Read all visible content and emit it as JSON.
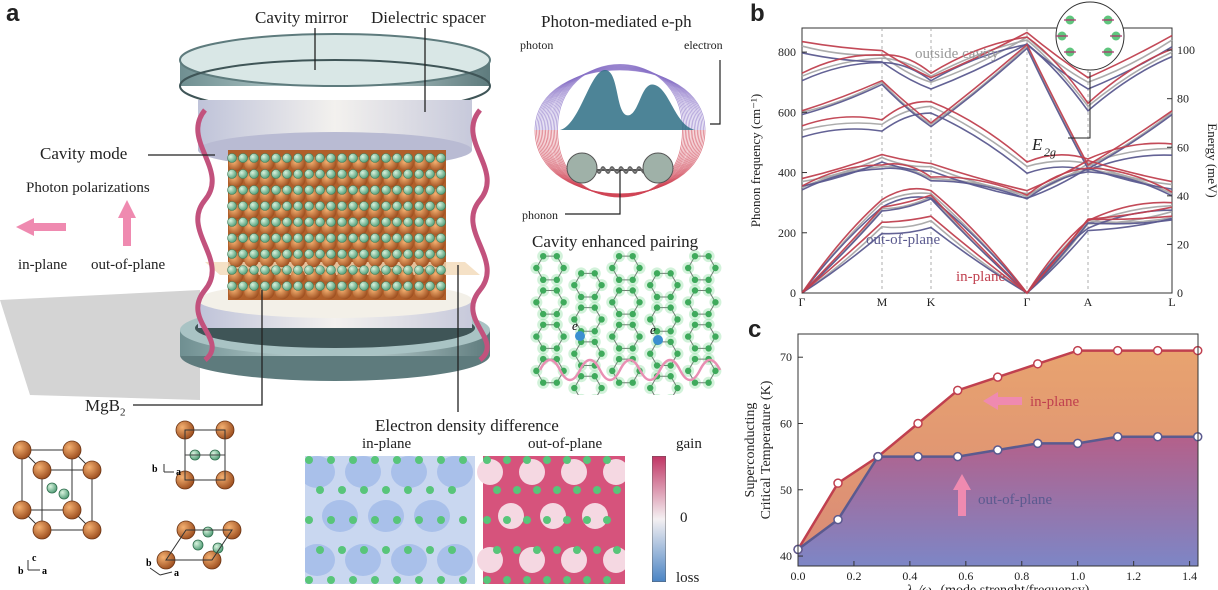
{
  "panels": {
    "a": "a",
    "b": "b",
    "c": "c"
  },
  "panel_a": {
    "cavity_mirror": "Cavity mirror",
    "dielectric_spacer": "Dielectric spacer",
    "cavity_mode": "Cavity mode",
    "photon_polarizations": "Photon polarizations",
    "in_plane": "in-plane",
    "out_of_plane": "out-of-plane",
    "material": "MgB",
    "material_sub": "2",
    "photon_mediated": "Photon-mediated e-ph",
    "photon": "photon",
    "electron": "electron",
    "phonon": "phonon",
    "cavity_enhanced": "Cavity enhanced pairing",
    "electron_symbol": "e",
    "edd_title": "Electron density difference",
    "edd_in_plane": "in-plane",
    "edd_out_of_plane": "out-of-plane",
    "colorbar": {
      "gain": "gain",
      "zero": "0",
      "loss": "loss"
    },
    "axes_labels": {
      "a": "a",
      "b": "b",
      "c": "c"
    }
  },
  "chart_data": [
    {
      "type": "line",
      "panel": "b",
      "ylabel": "Phonon frequency (cm⁻¹)",
      "y2label": "Energy (meV)",
      "x_ticks": [
        "Γ",
        "M",
        "K",
        "Γ",
        "A",
        "L"
      ],
      "ylim": [
        0,
        880
      ],
      "y_ticks": [
        0,
        200,
        400,
        600,
        800
      ],
      "y2_ticks": [
        0,
        20,
        40,
        60,
        80,
        100
      ],
      "y2lim": [
        0,
        109.1
      ],
      "annotations": [
        "outside cavity",
        "out-of-plane",
        "in-plane",
        "E",
        "2g"
      ],
      "series": [
        {
          "name": "outside cavity",
          "color": "#a8a8a8",
          "label_color": "#999999"
        },
        {
          "name": "out-of-plane",
          "color": "#5b5a8f",
          "label_color": "#5b5a8f"
        },
        {
          "name": "in-plane",
          "color": "#c0404f",
          "label_color": "#c0404f"
        }
      ]
    },
    {
      "type": "area",
      "panel": "c",
      "ylabel": "Superconducting",
      "ylabel2": "Critical Temperature (K)",
      "xlabel": "λα/ωα  (mode strenght/frequency)",
      "xlabel_main": "λ",
      "xlabel_sub1": "α",
      "xlabel_mid": "/ω",
      "xlabel_sub2": "α",
      "xlabel_rest": "  (mode strenght/frequency)",
      "xlim": [
        0,
        1.43
      ],
      "ylim": [
        38.5,
        73.5
      ],
      "x_ticks": [
        "0.0",
        "0.2",
        "0.4",
        "0.6",
        "0.8",
        "1.0",
        "1.2",
        "1.4"
      ],
      "y_ticks": [
        "40",
        "50",
        "60",
        "70"
      ],
      "series": [
        {
          "name": "in-plane",
          "color": "#c0404f",
          "x": [
            0.0,
            0.143,
            0.286,
            0.429,
            0.571,
            0.714,
            0.857,
            1.0,
            1.143,
            1.286,
            1.429
          ],
          "y": [
            41,
            51,
            55,
            60,
            65,
            67,
            69,
            71,
            71,
            71,
            71
          ]
        },
        {
          "name": "out-of-plane",
          "color": "#5b5a8f",
          "x": [
            0.0,
            0.143,
            0.286,
            0.429,
            0.571,
            0.714,
            0.857,
            1.0,
            1.143,
            1.286,
            1.429
          ],
          "y": [
            41,
            45.5,
            55,
            55,
            55,
            56,
            57,
            57,
            58,
            58,
            58
          ]
        }
      ]
    }
  ]
}
